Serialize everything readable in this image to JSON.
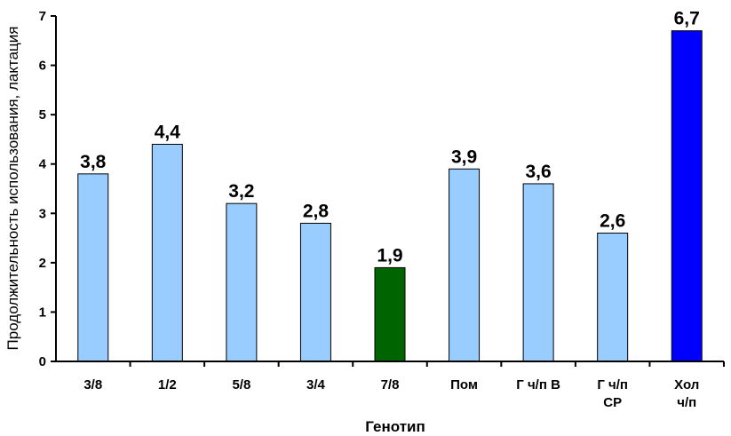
{
  "chart_data": {
    "type": "bar",
    "title": "",
    "xlabel": "Генотип",
    "ylabel": "Продолжительность использования, лактация",
    "ylim": [
      0,
      7
    ],
    "yticks": [
      "0",
      "1",
      "2",
      "3",
      "4",
      "5",
      "6",
      "7"
    ],
    "grid": false,
    "categories": [
      [
        "3/8"
      ],
      [
        "1/2"
      ],
      [
        "5/8"
      ],
      [
        "3/4"
      ],
      [
        "7/8"
      ],
      [
        "Пом"
      ],
      [
        "Г ч/п В"
      ],
      [
        "Г ч/п",
        "СР"
      ],
      [
        "Хол",
        "ч/п"
      ]
    ],
    "values": [
      3.8,
      4.4,
      3.2,
      2.8,
      1.9,
      3.9,
      3.6,
      2.6,
      6.7
    ],
    "value_labels": [
      "3,8",
      "4,4",
      "3,2",
      "2,8",
      "1,9",
      "3,9",
      "3,6",
      "2,6",
      "6,7"
    ],
    "colors": [
      "#99ccff",
      "#99ccff",
      "#99ccff",
      "#99ccff",
      "#006400",
      "#99ccff",
      "#99ccff",
      "#99ccff",
      "#0000ff"
    ]
  }
}
